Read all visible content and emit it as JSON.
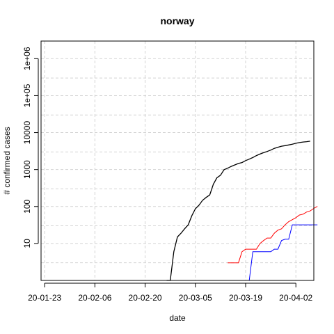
{
  "chart_data": {
    "type": "line",
    "title": "norway",
    "xlabel": "date",
    "ylabel": "# confirmed cases",
    "x_tick_labels": [
      "20-01-23",
      "20-02-06",
      "20-02-20",
      "20-03-05",
      "20-03-19",
      "20-04-02"
    ],
    "y_tick_labels": [
      "10",
      "100",
      "1000",
      "10000",
      "1e+05",
      "1e+06"
    ],
    "y_scale": "log",
    "xlim": [
      "2020-01-22",
      "2020-04-07"
    ],
    "ylim": [
      1.0,
      3000000
    ],
    "grid": true,
    "series": [
      {
        "color": "#000000",
        "points": [
          [
            "2020-02-26",
            1
          ],
          [
            "2020-02-27",
            1
          ],
          [
            "2020-02-28",
            6
          ],
          [
            "2020-02-29",
            15
          ],
          [
            "2020-03-01",
            19
          ],
          [
            "2020-03-02",
            25
          ],
          [
            "2020-03-03",
            32
          ],
          [
            "2020-03-04",
            56
          ],
          [
            "2020-03-05",
            87
          ],
          [
            "2020-03-06",
            108
          ],
          [
            "2020-03-07",
            147
          ],
          [
            "2020-03-08",
            176
          ],
          [
            "2020-03-09",
            205
          ],
          [
            "2020-03-10",
            400
          ],
          [
            "2020-03-11",
            598
          ],
          [
            "2020-03-12",
            702
          ],
          [
            "2020-03-13",
            996
          ],
          [
            "2020-03-14",
            1090
          ],
          [
            "2020-03-15",
            1221
          ],
          [
            "2020-03-16",
            1333
          ],
          [
            "2020-03-17",
            1463
          ],
          [
            "2020-03-18",
            1550
          ],
          [
            "2020-03-19",
            1746
          ],
          [
            "2020-03-20",
            1914
          ],
          [
            "2020-03-21",
            2118
          ],
          [
            "2020-03-22",
            2385
          ],
          [
            "2020-03-23",
            2621
          ],
          [
            "2020-03-24",
            2863
          ],
          [
            "2020-03-25",
            3084
          ],
          [
            "2020-03-26",
            3369
          ],
          [
            "2020-03-27",
            3755
          ],
          [
            "2020-03-28",
            4015
          ],
          [
            "2020-03-29",
            4284
          ],
          [
            "2020-03-30",
            4445
          ],
          [
            "2020-03-31",
            4641
          ],
          [
            "2020-04-01",
            4863
          ],
          [
            "2020-04-02",
            5147
          ],
          [
            "2020-04-03",
            5370
          ],
          [
            "2020-04-04",
            5550
          ],
          [
            "2020-04-05",
            5687
          ],
          [
            "2020-04-06",
            5865
          ]
        ]
      },
      {
        "color": "#ff0000",
        "points": [
          [
            "2020-03-14",
            3
          ],
          [
            "2020-03-15",
            3
          ],
          [
            "2020-03-16",
            3
          ],
          [
            "2020-03-17",
            3
          ],
          [
            "2020-03-18",
            6
          ],
          [
            "2020-03-19",
            7
          ],
          [
            "2020-03-20",
            7
          ],
          [
            "2020-03-21",
            7
          ],
          [
            "2020-03-22",
            7
          ],
          [
            "2020-03-23",
            10
          ],
          [
            "2020-03-24",
            12
          ],
          [
            "2020-03-25",
            14
          ],
          [
            "2020-03-26",
            14
          ],
          [
            "2020-03-27",
            19
          ],
          [
            "2020-03-28",
            23
          ],
          [
            "2020-03-29",
            25
          ],
          [
            "2020-03-30",
            32
          ],
          [
            "2020-03-31",
            39
          ],
          [
            "2020-04-01",
            44
          ],
          [
            "2020-04-02",
            50
          ],
          [
            "2020-04-03",
            59
          ],
          [
            "2020-04-04",
            62
          ],
          [
            "2020-04-05",
            71
          ],
          [
            "2020-04-06",
            76
          ],
          [
            "2020-04-07",
            89
          ],
          [
            "2020-04-08",
            101
          ]
        ]
      },
      {
        "color": "#0000ff",
        "points": [
          [
            "2020-03-09",
            1
          ],
          [
            "2020-03-10",
            1
          ],
          [
            "2020-03-11",
            1
          ],
          [
            "2020-03-12",
            1
          ],
          [
            "2020-03-13",
            1
          ],
          [
            "2020-03-14",
            1
          ],
          [
            "2020-03-15",
            1
          ],
          [
            "2020-03-16",
            1
          ],
          [
            "2020-03-17",
            1
          ],
          [
            "2020-03-18",
            1
          ],
          [
            "2020-03-19",
            1
          ],
          [
            "2020-03-20",
            1
          ],
          [
            "2020-03-21",
            6
          ],
          [
            "2020-03-22",
            6
          ],
          [
            "2020-03-23",
            6
          ],
          [
            "2020-03-24",
            6
          ],
          [
            "2020-03-25",
            6
          ],
          [
            "2020-03-26",
            6
          ],
          [
            "2020-03-27",
            7
          ],
          [
            "2020-03-28",
            7
          ],
          [
            "2020-03-29",
            12
          ],
          [
            "2020-03-30",
            13
          ],
          [
            "2020-03-31",
            13
          ],
          [
            "2020-04-01",
            32
          ],
          [
            "2020-04-02",
            32
          ],
          [
            "2020-04-03",
            32
          ],
          [
            "2020-04-04",
            32
          ],
          [
            "2020-04-05",
            32
          ],
          [
            "2020-04-06",
            32
          ],
          [
            "2020-04-07",
            32
          ],
          [
            "2020-04-08",
            32
          ]
        ]
      }
    ]
  }
}
